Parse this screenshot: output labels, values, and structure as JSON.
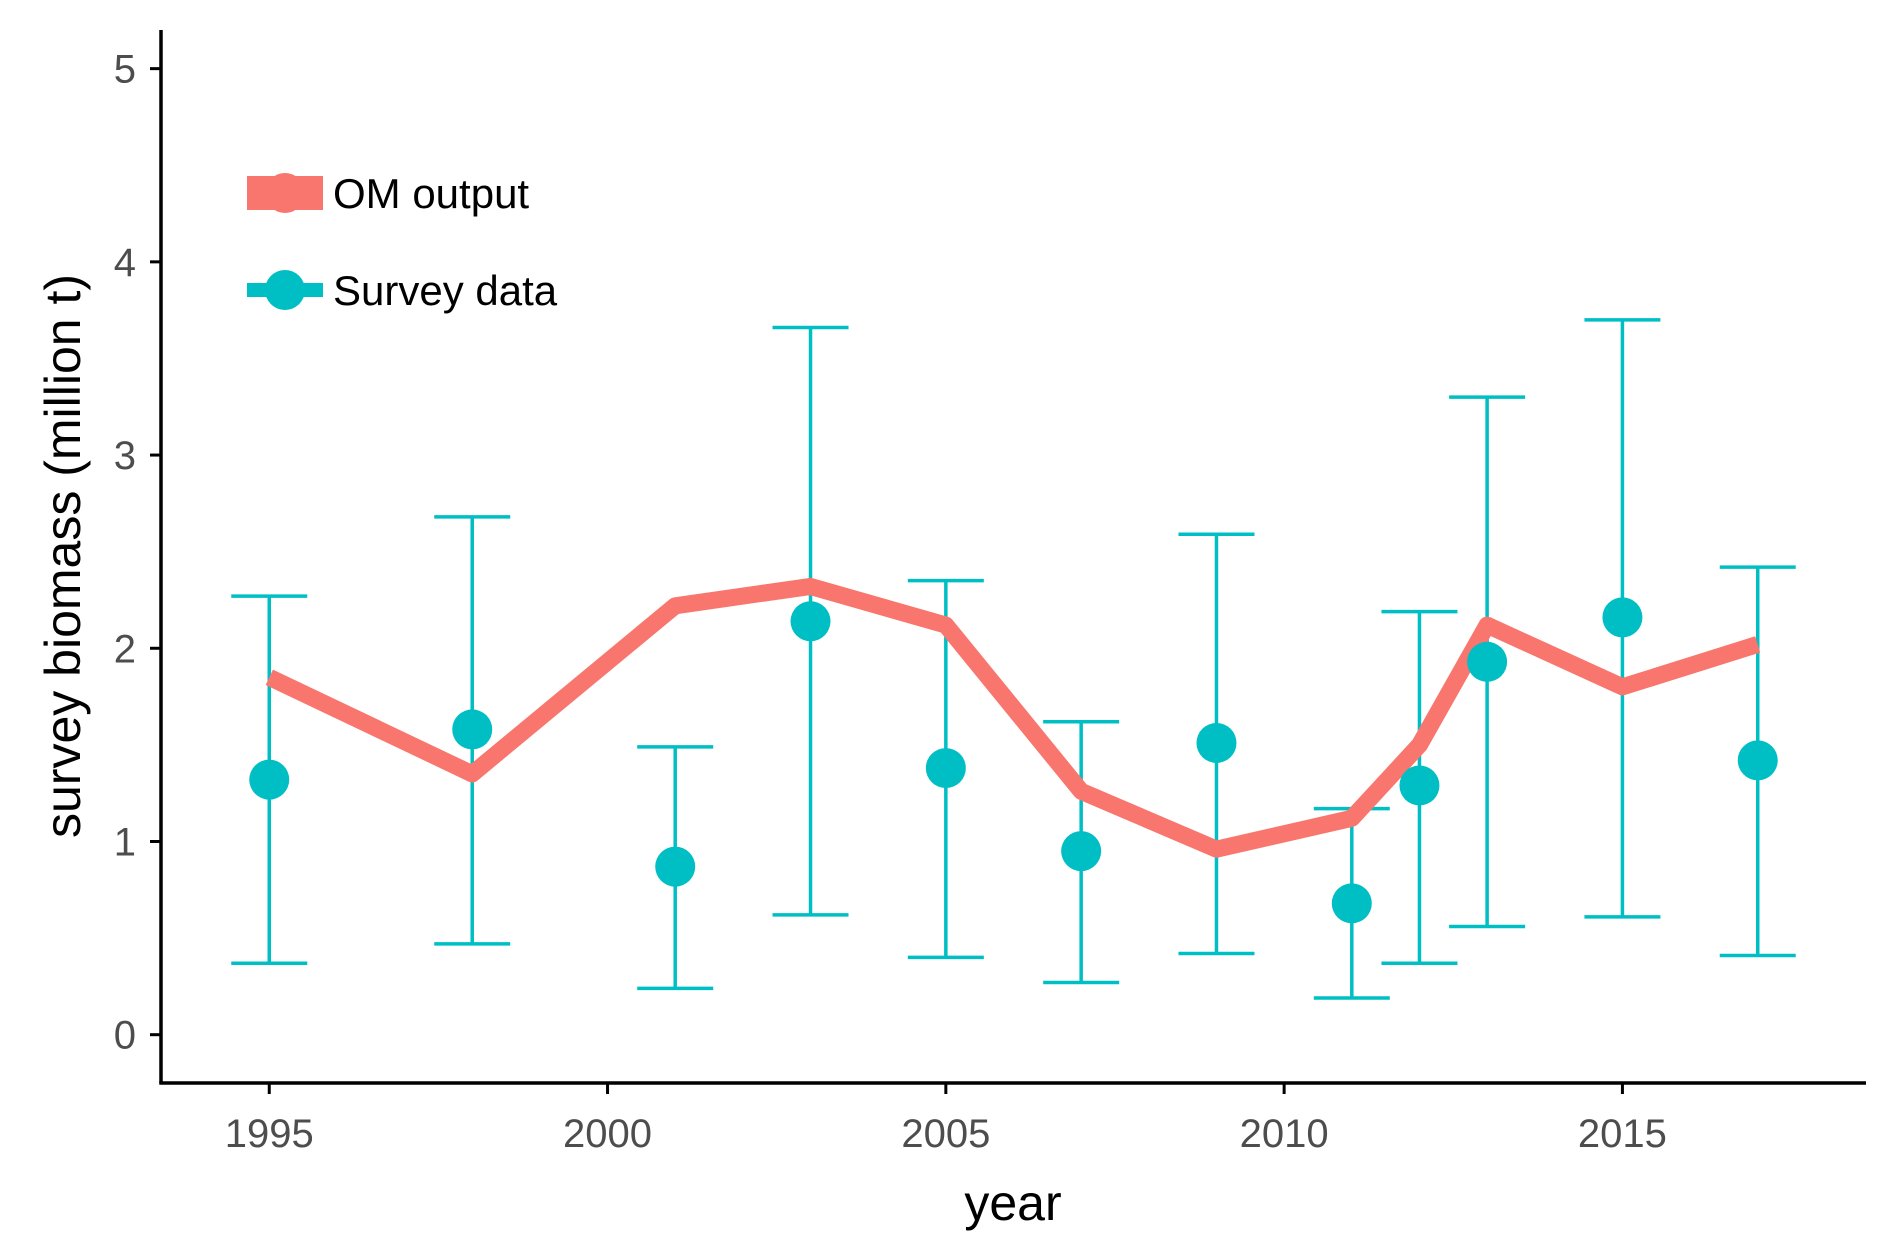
{
  "chart_data": {
    "type": "line",
    "title": "",
    "xlabel": "year",
    "ylabel": "survey biomass (million t)",
    "xlim": [
      1993.4,
      2018.6
    ],
    "ylim": [
      -0.25,
      5.2
    ],
    "x_ticks": [
      1995,
      2000,
      2005,
      2010,
      2015
    ],
    "y_ticks": [
      0,
      1,
      2,
      3,
      4,
      5
    ],
    "grid": false,
    "legend_position": "top-left",
    "series": [
      {
        "name": "OM output",
        "kind": "line",
        "color": "#F8766D",
        "points": [
          {
            "x": 1995,
            "y": 1.85
          },
          {
            "x": 1998,
            "y": 1.35
          },
          {
            "x": 2001,
            "y": 2.22
          },
          {
            "x": 2003,
            "y": 2.32
          },
          {
            "x": 2005,
            "y": 2.12
          },
          {
            "x": 2007,
            "y": 1.26
          },
          {
            "x": 2009,
            "y": 0.96
          },
          {
            "x": 2011,
            "y": 1.12
          },
          {
            "x": 2012,
            "y": 1.5
          },
          {
            "x": 2013,
            "y": 2.12
          },
          {
            "x": 2015,
            "y": 1.8
          },
          {
            "x": 2017,
            "y": 2.02
          }
        ]
      },
      {
        "name": "Survey data",
        "kind": "points_with_errorbars",
        "color": "#00BFC4",
        "points": [
          {
            "x": 1995,
            "y": 1.32,
            "lower": 0.37,
            "upper": 2.27
          },
          {
            "x": 1998,
            "y": 1.58,
            "lower": 0.47,
            "upper": 2.68
          },
          {
            "x": 2001,
            "y": 0.87,
            "lower": 0.24,
            "upper": 1.49
          },
          {
            "x": 2003,
            "y": 2.14,
            "lower": 0.62,
            "upper": 3.66
          },
          {
            "x": 2005,
            "y": 1.38,
            "lower": 0.4,
            "upper": 2.35
          },
          {
            "x": 2007,
            "y": 0.95,
            "lower": 0.27,
            "upper": 1.62
          },
          {
            "x": 2009,
            "y": 1.51,
            "lower": 0.42,
            "upper": 2.59
          },
          {
            "x": 2011,
            "y": 0.68,
            "lower": 0.19,
            "upper": 1.17
          },
          {
            "x": 2012,
            "y": 1.29,
            "lower": 0.37,
            "upper": 2.19
          },
          {
            "x": 2013,
            "y": 1.93,
            "lower": 0.56,
            "upper": 3.3
          },
          {
            "x": 2015,
            "y": 2.16,
            "lower": 0.61,
            "upper": 3.7
          },
          {
            "x": 2017,
            "y": 1.42,
            "lower": 0.41,
            "upper": 2.42
          }
        ]
      }
    ]
  }
}
